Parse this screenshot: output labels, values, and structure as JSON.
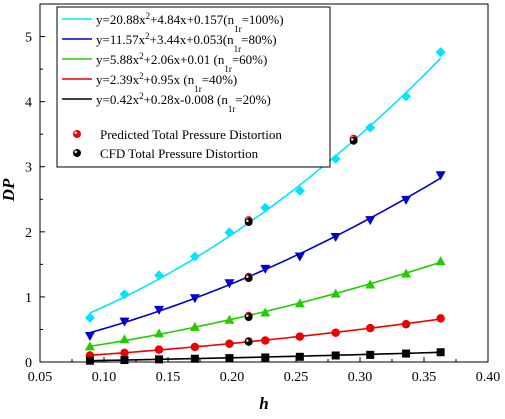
{
  "chart_data": {
    "type": "scatter",
    "title": "",
    "xlabel": "h",
    "ylabel": "DP",
    "xlim": [
      0.05,
      0.4
    ],
    "ylim": [
      0,
      5.5
    ],
    "x_ticks": [
      "0.05",
      "0.10",
      "0.15",
      "0.20",
      "0.25",
      "0.30",
      "0.35",
      "0.40"
    ],
    "y_ticks": [
      "0",
      "1",
      "2",
      "3",
      "4",
      "5"
    ],
    "grid": false,
    "legend_position": "top-left",
    "series": [
      {
        "name": "y=20.88x2+4.84x+0.157(n1r=100%)",
        "legend": {
          "main": "y=20.88x",
          "sup": "2",
          "mid": "+4.84x+0.157(n",
          "sub": "1r",
          "tail": "=100%)"
        },
        "color": "#00e5ff",
        "marker": "diamond",
        "fit": [
          20.88,
          4.84,
          0.157
        ],
        "x": [
          0.089,
          0.116,
          0.143,
          0.171,
          0.198,
          0.226,
          0.253,
          0.281,
          0.308,
          0.336,
          0.363
        ],
        "y": [
          0.68,
          1.04,
          1.33,
          1.62,
          1.99,
          2.37,
          2.63,
          3.12,
          3.6,
          4.08,
          4.76
        ]
      },
      {
        "name": "y=11.57x2+3.44x+0.053(n1r=80%)",
        "legend": {
          "main": "y=11.57x",
          "sup": "2",
          "mid": "+3.44x+0.053(n",
          "sub": "1r",
          "tail": "=80%)"
        },
        "color": "#0000cc",
        "marker": "triangle-down",
        "fit": [
          11.57,
          3.44,
          0.053
        ],
        "x": [
          0.089,
          0.116,
          0.143,
          0.171,
          0.198,
          0.226,
          0.253,
          0.281,
          0.308,
          0.336,
          0.363
        ],
        "y": [
          0.4,
          0.62,
          0.8,
          0.98,
          1.21,
          1.43,
          1.62,
          1.92,
          2.18,
          2.49,
          2.87
        ]
      },
      {
        "name": "y=5.88x2+2.06x+0.01 (n1r=60%)",
        "legend": {
          "main": "y=5.88x",
          "sup": "2",
          "mid": "+2.06x+0.01      (n",
          "sub": "1r",
          "tail": "=60%)"
        },
        "color": "#22cc00",
        "marker": "triangle-up",
        "fit": [
          5.88,
          2.06,
          0.01
        ],
        "x": [
          0.089,
          0.116,
          0.143,
          0.171,
          0.198,
          0.226,
          0.253,
          0.281,
          0.308,
          0.336,
          0.363
        ],
        "y": [
          0.24,
          0.35,
          0.44,
          0.54,
          0.65,
          0.76,
          0.9,
          1.05,
          1.19,
          1.36,
          1.55
        ]
      },
      {
        "name": "y=2.39x2+0.95x (n1r=40%)",
        "legend": {
          "main": "y=2.39x",
          "sup": "2",
          "mid": "+0.95x             (n",
          "sub": "1r",
          "tail": "=40%)"
        },
        "color": "#ee0000",
        "marker": "circle",
        "fit": [
          2.39,
          0.95,
          0
        ],
        "x": [
          0.089,
          0.116,
          0.143,
          0.171,
          0.198,
          0.226,
          0.253,
          0.281,
          0.308,
          0.336,
          0.363
        ],
        "y": [
          0.1,
          0.14,
          0.19,
          0.23,
          0.28,
          0.33,
          0.39,
          0.45,
          0.52,
          0.58,
          0.67
        ]
      },
      {
        "name": "y=0.42x2+0.28x-0.008 (n1r=20%)",
        "legend": {
          "main": "y=0.42x",
          "sup": "2",
          "mid": "+0.28x-0.008     (n",
          "sub": "1r",
          "tail": "=20%)"
        },
        "color": "#000000",
        "marker": "square",
        "fit": [
          0.42,
          0.28,
          -0.008
        ],
        "x": [
          0.089,
          0.116,
          0.143,
          0.171,
          0.198,
          0.226,
          0.253,
          0.281,
          0.308,
          0.336,
          0.363
        ],
        "y": [
          0.02,
          0.03,
          0.04,
          0.05,
          0.06,
          0.07,
          0.08,
          0.1,
          0.11,
          0.13,
          0.15
        ]
      }
    ],
    "validation_points": [
      {
        "name": "Predicted Total Pressure Distortion",
        "color": "#ee0000",
        "x": [
          0.213,
          0.213,
          0.213,
          0.213,
          0.295
        ],
        "y": [
          2.18,
          1.31,
          0.71,
          0.32,
          3.43
        ]
      },
      {
        "name": "CFD Total Pressure Distortion",
        "color": "#000000",
        "x": [
          0.213,
          0.213,
          0.213,
          0.213,
          0.295
        ],
        "y": [
          2.15,
          1.29,
          0.69,
          0.31,
          3.4
        ]
      }
    ]
  }
}
